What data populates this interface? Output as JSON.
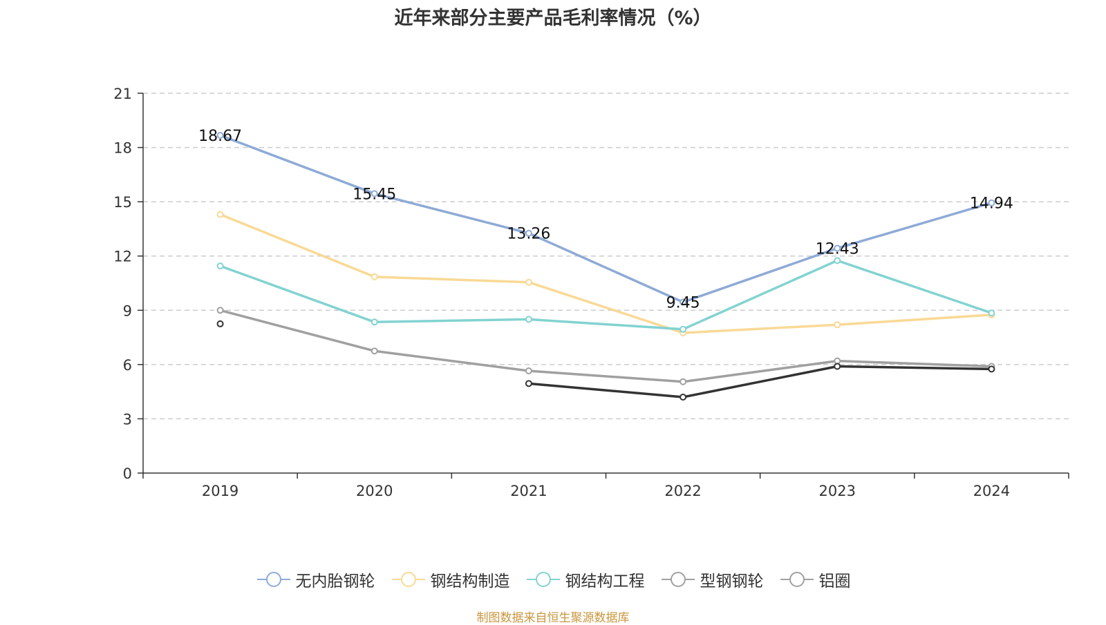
{
  "chart_data": {
    "type": "line",
    "title": "近年来部分主要产品毛利率情况（%）",
    "xlabel": "",
    "ylabel": "",
    "categories": [
      "2019",
      "2020",
      "2021",
      "2022",
      "2023",
      "2024"
    ],
    "ylim": [
      0,
      21
    ],
    "yticks": [
      0,
      3,
      6,
      9,
      12,
      15,
      18,
      21
    ],
    "grid": "horizontal-dashed",
    "legend_position": "bottom-center",
    "series": [
      {
        "name": "无内胎钢轮",
        "color": "#8eaad6",
        "values": [
          18.67,
          15.45,
          13.26,
          9.45,
          12.43,
          14.94
        ],
        "show_labels": true
      },
      {
        "name": "钢结构制造",
        "color": "#f9d995",
        "values": [
          14.3,
          10.85,
          10.55,
          7.75,
          8.2,
          8.75
        ],
        "show_labels": false
      },
      {
        "name": "钢结构工程",
        "color": "#82d3d1",
        "values": [
          11.45,
          8.35,
          8.5,
          7.95,
          11.75,
          8.85
        ],
        "show_labels": false
      },
      {
        "name": "型钢钢轮",
        "color": "#a0a0a0",
        "values": [
          9.0,
          6.75,
          5.65,
          5.05,
          6.2,
          5.9
        ],
        "show_labels": false
      },
      {
        "name": "铝圈",
        "color": "#333333",
        "legend_color": "#a0a0a0",
        "values": [
          8.25,
          null,
          4.95,
          4.2,
          5.9,
          5.75
        ],
        "show_labels": false
      }
    ]
  },
  "source_note": "制图数据来自恒生聚源数据库"
}
